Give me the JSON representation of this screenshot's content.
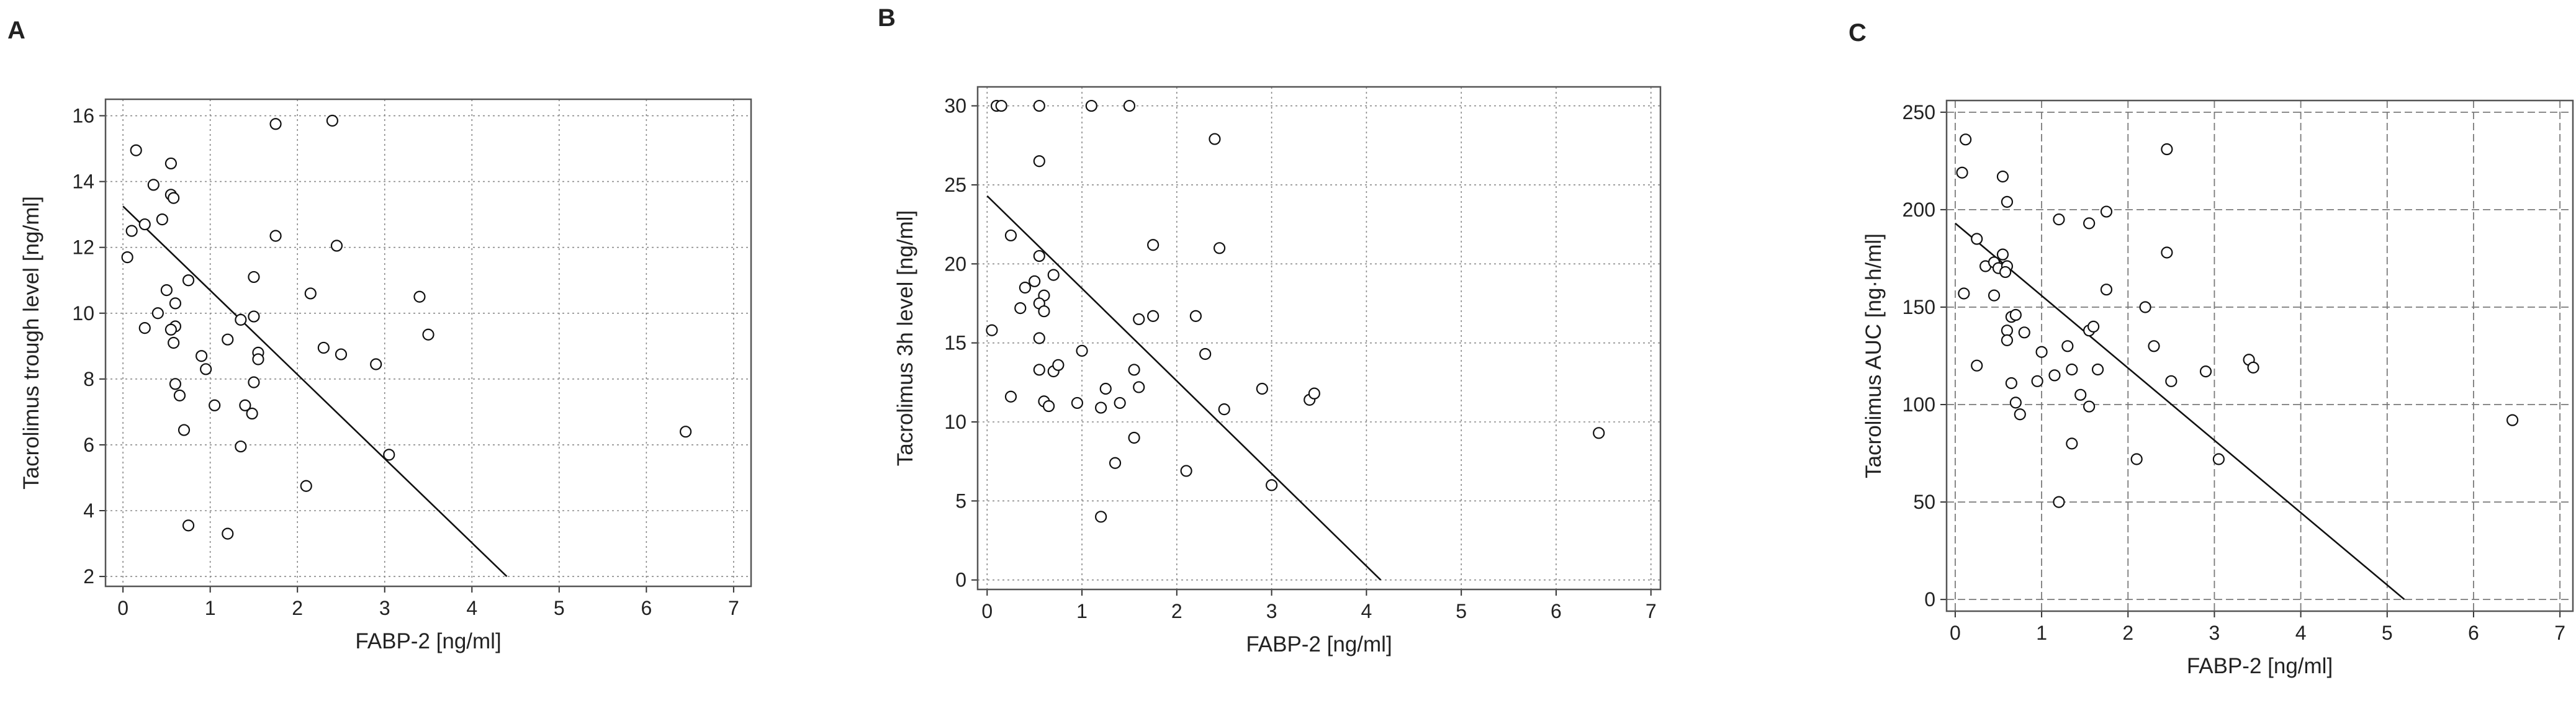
{
  "chart_data": [
    {
      "type": "scatter",
      "panel": "A",
      "xlabel": "FABP-2 [ng/ml]",
      "ylabel": "Tacrolimus trough level [ng/ml]",
      "xlim": [
        -0.2,
        7.2
      ],
      "ylim": [
        1.7,
        16.5
      ],
      "xticks": [
        0,
        1,
        2,
        3,
        4,
        5,
        6,
        7
      ],
      "yticks": [
        2,
        4,
        6,
        8,
        10,
        12,
        14,
        16
      ],
      "grid": "dotted",
      "legend": "none",
      "points": [
        [
          0.15,
          14.95
        ],
        [
          0.35,
          13.9
        ],
        [
          0.1,
          12.5
        ],
        [
          0.25,
          12.7
        ],
        [
          0.05,
          11.7
        ],
        [
          0.45,
          12.85
        ],
        [
          0.55,
          14.55
        ],
        [
          0.55,
          13.6
        ],
        [
          0.58,
          13.5
        ],
        [
          0.75,
          11.0
        ],
        [
          0.5,
          10.7
        ],
        [
          0.6,
          10.3
        ],
        [
          0.4,
          10.0
        ],
        [
          0.25,
          9.55
        ],
        [
          0.6,
          9.6
        ],
        [
          0.55,
          9.5
        ],
        [
          0.58,
          9.1
        ],
        [
          0.9,
          8.7
        ],
        [
          0.95,
          8.3
        ],
        [
          0.6,
          7.85
        ],
        [
          0.65,
          7.5
        ],
        [
          0.7,
          6.45
        ],
        [
          0.75,
          3.55
        ],
        [
          1.05,
          7.2
        ],
        [
          1.2,
          9.2
        ],
        [
          1.35,
          9.8
        ],
        [
          1.35,
          5.95
        ],
        [
          1.4,
          7.2
        ],
        [
          1.48,
          6.95
        ],
        [
          1.5,
          9.9
        ],
        [
          1.55,
          8.8
        ],
        [
          1.55,
          8.6
        ],
        [
          1.5,
          7.9
        ],
        [
          1.5,
          11.1
        ],
        [
          1.75,
          12.35
        ],
        [
          1.75,
          15.75
        ],
        [
          2.4,
          15.85
        ],
        [
          2.45,
          12.05
        ],
        [
          2.15,
          10.6
        ],
        [
          2.3,
          8.95
        ],
        [
          2.5,
          8.75
        ],
        [
          2.9,
          8.45
        ],
        [
          3.05,
          5.7
        ],
        [
          3.4,
          10.5
        ],
        [
          3.5,
          9.35
        ],
        [
          1.2,
          3.3
        ],
        [
          2.1,
          4.75
        ],
        [
          6.45,
          6.4
        ]
      ],
      "fit_line": [
        [
          0,
          13.25
        ],
        [
          4.4,
          2.0
        ]
      ]
    },
    {
      "type": "scatter",
      "panel": "B",
      "xlabel": "FABP-2 [ng/ml]",
      "ylabel": "Tacrolimus 3h level [ng/ml]",
      "xlim": [
        -0.1,
        7.1
      ],
      "ylim": [
        -0.6,
        31.2
      ],
      "xticks": [
        0,
        1,
        2,
        3,
        4,
        5,
        6,
        7
      ],
      "yticks": [
        0,
        5,
        10,
        15,
        20,
        25,
        30
      ],
      "grid": "dotted",
      "legend": "none",
      "points": [
        [
          0.1,
          30.0
        ],
        [
          0.15,
          30.0
        ],
        [
          0.55,
          30.0
        ],
        [
          1.1,
          30.0
        ],
        [
          1.5,
          30.0
        ],
        [
          0.55,
          26.5
        ],
        [
          2.4,
          27.9
        ],
        [
          0.25,
          21.8
        ],
        [
          0.55,
          20.5
        ],
        [
          1.75,
          21.2
        ],
        [
          2.45,
          21.0
        ],
        [
          0.7,
          19.3
        ],
        [
          0.4,
          18.5
        ],
        [
          0.5,
          18.9
        ],
        [
          0.6,
          18.0
        ],
        [
          0.55,
          17.5
        ],
        [
          0.6,
          17.0
        ],
        [
          0.35,
          17.2
        ],
        [
          0.05,
          15.8
        ],
        [
          0.55,
          15.3
        ],
        [
          1.0,
          14.5
        ],
        [
          0.7,
          13.2
        ],
        [
          0.75,
          13.6
        ],
        [
          0.55,
          13.3
        ],
        [
          1.55,
          13.3
        ],
        [
          1.25,
          12.1
        ],
        [
          1.6,
          12.2
        ],
        [
          1.6,
          16.5
        ],
        [
          1.75,
          16.7
        ],
        [
          2.2,
          16.7
        ],
        [
          2.3,
          14.3
        ],
        [
          2.9,
          12.1
        ],
        [
          2.5,
          10.8
        ],
        [
          0.6,
          11.3
        ],
        [
          0.65,
          11.0
        ],
        [
          0.95,
          11.2
        ],
        [
          1.2,
          10.9
        ],
        [
          1.4,
          11.2
        ],
        [
          0.25,
          11.6
        ],
        [
          1.55,
          9.0
        ],
        [
          1.35,
          7.4
        ],
        [
          2.1,
          6.9
        ],
        [
          1.2,
          4.0
        ],
        [
          3.0,
          6.0
        ],
        [
          3.4,
          11.4
        ],
        [
          3.45,
          11.8
        ],
        [
          6.45,
          9.3
        ]
      ],
      "fit_line": [
        [
          0,
          24.3
        ],
        [
          4.15,
          0.0
        ]
      ]
    },
    {
      "type": "scatter",
      "panel": "C",
      "xlabel": "FABP-2 [ng/ml]",
      "ylabel": "Tacrolimus AUC [ng·h/ml]",
      "xlim": [
        -0.1,
        7.15
      ],
      "ylim": [
        -6,
        256
      ],
      "xticks": [
        0,
        1,
        2,
        3,
        4,
        5,
        6,
        7
      ],
      "yticks": [
        0,
        50,
        100,
        150,
        200,
        250
      ],
      "grid": "dashed",
      "legend": "none",
      "points": [
        [
          0.12,
          236
        ],
        [
          0.08,
          219
        ],
        [
          0.55,
          217
        ],
        [
          2.45,
          231
        ],
        [
          0.6,
          204
        ],
        [
          1.2,
          195
        ],
        [
          1.55,
          193
        ],
        [
          1.75,
          199
        ],
        [
          0.25,
          185
        ],
        [
          0.55,
          177
        ],
        [
          0.35,
          171
        ],
        [
          0.45,
          173
        ],
        [
          0.5,
          170
        ],
        [
          0.6,
          171
        ],
        [
          0.58,
          168
        ],
        [
          2.45,
          178
        ],
        [
          0.1,
          157
        ],
        [
          0.45,
          156
        ],
        [
          1.75,
          159
        ],
        [
          2.2,
          150
        ],
        [
          0.65,
          145
        ],
        [
          0.7,
          146
        ],
        [
          0.6,
          138
        ],
        [
          0.6,
          133
        ],
        [
          0.8,
          137
        ],
        [
          1.55,
          138
        ],
        [
          1.6,
          140
        ],
        [
          1.3,
          130
        ],
        [
          2.3,
          130
        ],
        [
          1.0,
          127
        ],
        [
          1.35,
          118
        ],
        [
          1.65,
          118
        ],
        [
          1.15,
          115
        ],
        [
          0.95,
          112
        ],
        [
          0.65,
          111
        ],
        [
          2.5,
          112
        ],
        [
          2.9,
          117
        ],
        [
          3.4,
          123
        ],
        [
          3.45,
          119
        ],
        [
          0.25,
          120
        ],
        [
          1.45,
          105
        ],
        [
          0.7,
          101
        ],
        [
          0.75,
          95
        ],
        [
          1.55,
          99
        ],
        [
          1.35,
          80
        ],
        [
          2.1,
          72
        ],
        [
          3.05,
          72
        ],
        [
          1.2,
          50
        ],
        [
          6.45,
          92
        ]
      ],
      "fit_line": [
        [
          0,
          193
        ],
        [
          5.2,
          0
        ]
      ]
    }
  ]
}
